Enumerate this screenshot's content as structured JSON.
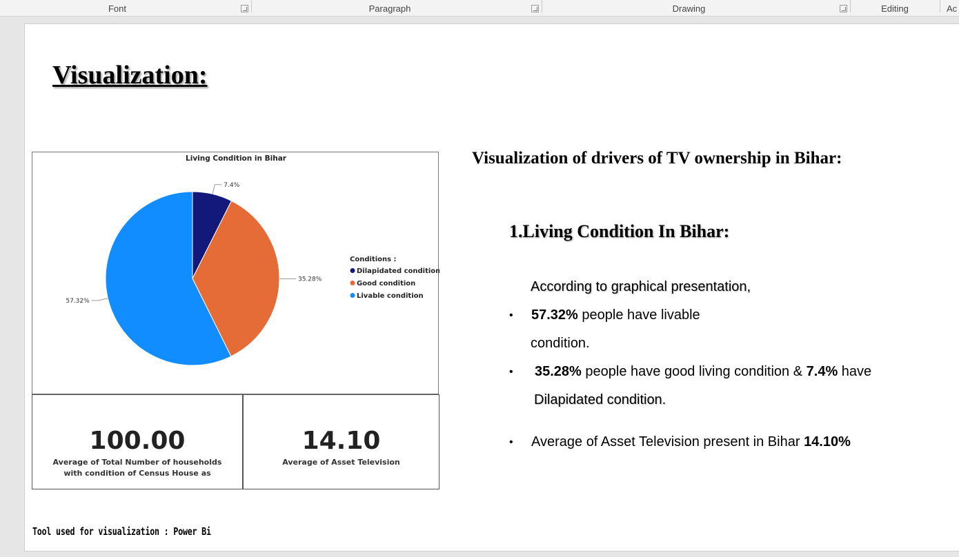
{
  "ribbon": {
    "groups": [
      "Font",
      "Paragraph",
      "Drawing",
      "Editing",
      "Ac"
    ]
  },
  "document": {
    "title": "Visualization:",
    "chart": {
      "title": "Living Condition in Bihar",
      "legend_title": "Conditions :",
      "legend": [
        "Dilapidated condition",
        "Good condition",
        "Livable condition"
      ],
      "labels": [
        "7.4%",
        "35.28%",
        "57.32%"
      ]
    },
    "cards": [
      {
        "value": "100.00",
        "caption": "Average of Total Number of households with condition of Census House as"
      },
      {
        "value": "14.10",
        "caption": "Average of Asset Television"
      }
    ],
    "tool_note": "Tool used for visualization : Power Bi",
    "heading": "Visualization of drivers of TV ownership in Bihar:",
    "subheading": "1.Living Condition In Bihar:",
    "intro": "According to graphical presentation,",
    "bullets": [
      {
        "bold": "57.32%",
        "text": " people have livable",
        "cont": "condition."
      },
      {
        "bold": "35.28%",
        "text": " people have good living condition & ",
        "bold2": "7.4%",
        "text2": " have",
        "cont": "Dilapidated condition."
      },
      {
        "text": "Average of Asset Television present in Bihar ",
        "bold": "14.10%"
      }
    ]
  },
  "chart_data": {
    "type": "pie",
    "title": "Living Condition in Bihar",
    "legend_title": "Conditions :",
    "categories": [
      "Dilapidated condition",
      "Good condition",
      "Livable condition"
    ],
    "values": [
      7.4,
      35.28,
      57.32
    ],
    "colors": [
      "#12197a",
      "#e66c37",
      "#118dff"
    ],
    "legend_position": "right"
  }
}
